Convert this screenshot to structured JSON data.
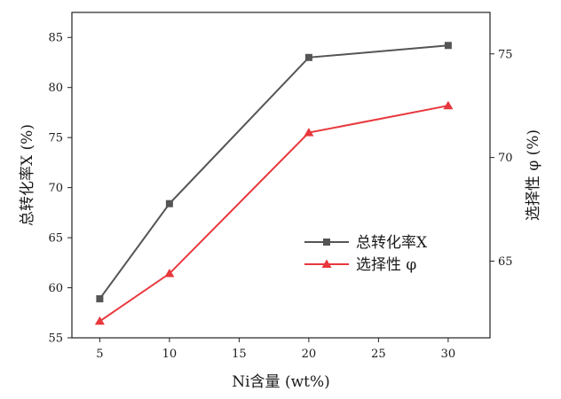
{
  "chart_data": {
    "type": "line",
    "x": [
      5,
      10,
      20,
      30
    ],
    "xlabel": "Ni含量 (wt%)",
    "ylabel_left": "总转化率X (%)",
    "ylabel_right": "选择性 φ (%)",
    "xlim": [
      3,
      33
    ],
    "xticks": [
      5,
      10,
      15,
      20,
      25,
      30
    ],
    "ylim_left": [
      55,
      87.5
    ],
    "yticks_left": [
      55,
      60,
      65,
      70,
      75,
      80,
      85
    ],
    "ylim_right": [
      61.3,
      77
    ],
    "yticks_right": [
      65,
      70,
      75
    ],
    "grid": false,
    "legend_position": "center-right",
    "series": [
      {
        "name": "总转化率X",
        "axis": "left",
        "color": "#555555",
        "marker": "square",
        "values": [
          58.9,
          68.4,
          83.0,
          84.2
        ]
      },
      {
        "name": "选择性 φ",
        "axis": "right",
        "color": "#e8383d",
        "marker": "triangle",
        "values": [
          62.1,
          64.4,
          71.2,
          72.5
        ]
      }
    ]
  }
}
